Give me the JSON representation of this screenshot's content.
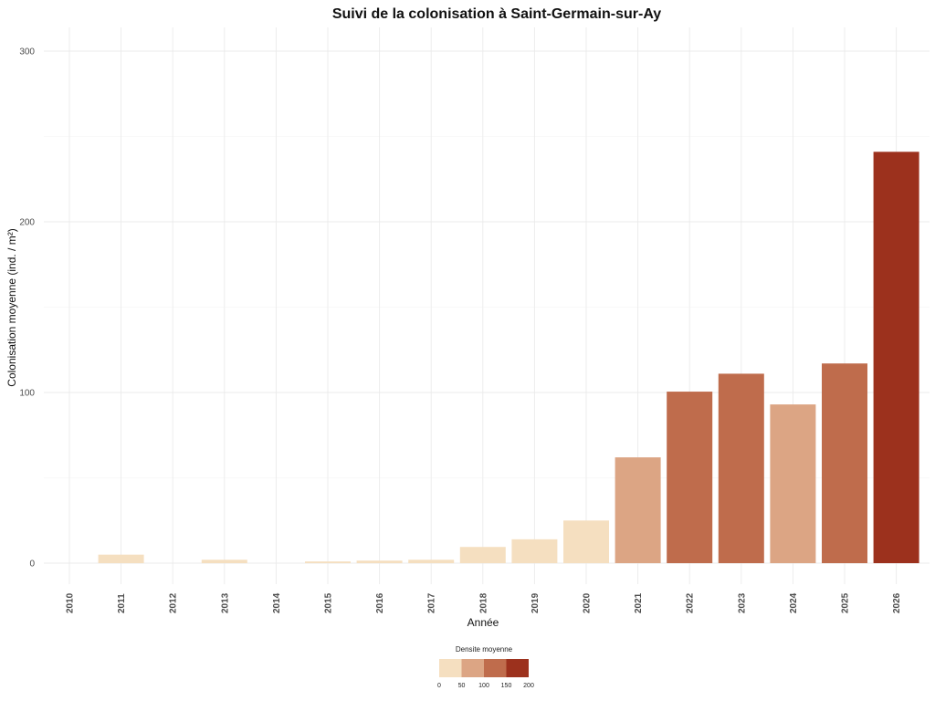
{
  "chart_data": {
    "type": "bar",
    "title": "Suivi de la colonisation à Saint-Germain-sur-Ay",
    "xlabel": "Année",
    "ylabel": "Colonisation moyenne (ind. / m²)",
    "categories": [
      "2010",
      "2011",
      "2012",
      "2013",
      "2014",
      "2015",
      "2016",
      "2017",
      "2018",
      "2019",
      "2020",
      "2021",
      "2022",
      "2023",
      "2024",
      "2025",
      "2026"
    ],
    "values": [
      0,
      5,
      0,
      2,
      0,
      1,
      1.5,
      2,
      9.5,
      14,
      25,
      62,
      100.5,
      111,
      93,
      117,
      241
    ],
    "ylim": [
      0,
      300
    ],
    "yticks": [
      0,
      100,
      200,
      300
    ],
    "grid": true,
    "legend": {
      "title": "Densite moyenne",
      "placement": "bottom",
      "type": "binned-colorbar",
      "breaks": [
        0,
        50,
        100,
        150,
        200
      ],
      "colors": [
        "#f5dfc0",
        "#dca584",
        "#bf6c4c",
        "#9c311d"
      ]
    }
  }
}
